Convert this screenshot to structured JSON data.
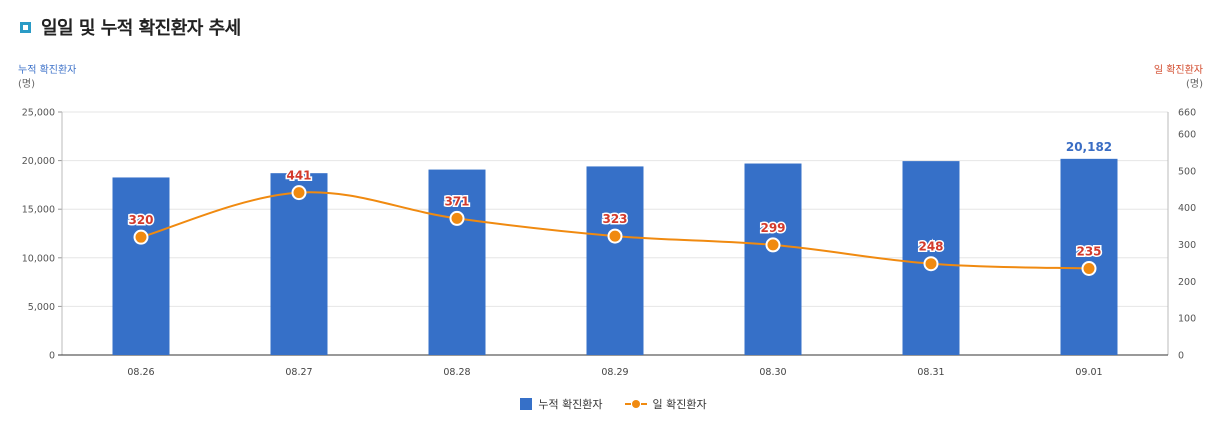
{
  "header": {
    "title": "일일 및 누적 확진환자 추세"
  },
  "axes": {
    "left": {
      "name": "누적 확진환자",
      "unit": "(명)"
    },
    "right": {
      "name": "일 확진환자",
      "unit": "(명)"
    }
  },
  "legend": {
    "bar_label": "누적 확진환자",
    "line_label": "일 확진환자"
  },
  "colors": {
    "bar": "#3670c8",
    "line": "#f08a10",
    "line_label": "#d33a2c",
    "bar_label": "#3a6dc4",
    "grid": "#e6e6e6"
  },
  "chart_data": {
    "type": "bar",
    "title": "일일 및 누적 확진환자 추세",
    "categories": [
      "08.26",
      "08.27",
      "08.28",
      "08.29",
      "08.30",
      "08.31",
      "09.01"
    ],
    "series": [
      {
        "name": "누적 확진환자",
        "type": "bar",
        "axis": "left",
        "values": [
          18265,
          18706,
          19077,
          19400,
          19699,
          19947,
          20182
        ],
        "labels": [
          "",
          "",
          "",
          "",
          "",
          "",
          "20,182"
        ]
      },
      {
        "name": "일 확진환자",
        "type": "line",
        "axis": "right",
        "values": [
          320,
          441,
          371,
          323,
          299,
          248,
          235
        ],
        "labels": [
          "320",
          "441",
          "371",
          "323",
          "299",
          "248",
          "235"
        ]
      }
    ],
    "yaxis_left": {
      "range": [
        0,
        25000
      ],
      "ticks": [
        0,
        5000,
        10000,
        15000,
        20000,
        25000
      ],
      "tick_labels": [
        "0",
        "5,000",
        "10,000",
        "15,000",
        "20,000",
        "25,000"
      ]
    },
    "yaxis_right": {
      "range": [
        0,
        660
      ],
      "ticks": [
        0,
        100,
        200,
        300,
        400,
        500,
        600,
        660
      ],
      "tick_labels": [
        "0",
        "100",
        "200",
        "300",
        "400",
        "500",
        "600",
        "660"
      ]
    },
    "grid": true,
    "legend_position": "bottom"
  }
}
